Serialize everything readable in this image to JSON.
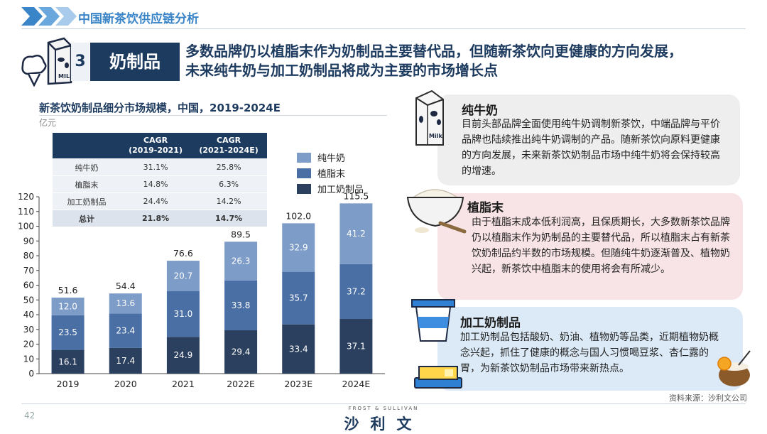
{
  "header": {
    "title": "中国新茶饮供应链分析"
  },
  "section": {
    "number": "3",
    "label": "奶制品",
    "headline_line1": "多数品牌仍以植脂末作为奶制品主要替代品，但随新茶饮向更健康的方向发展，",
    "headline_line2": "未来纯牛奶与加工奶制品将成为主要的市场增长点"
  },
  "chart": {
    "title": "新茶饮奶制品细分市场规模，中国，2019-2024E",
    "unit": "亿元"
  },
  "cagr_table": {
    "headers": [
      "",
      "CAGR\n(2019-2021)",
      "CAGR\n(2021-2024E)"
    ],
    "rows": [
      [
        "纯牛奶",
        "31.1%",
        "25.8%"
      ],
      [
        "植脂末",
        "14.8%",
        "6.3%"
      ],
      [
        "加工奶制品",
        "24.4%",
        "14.2%"
      ],
      [
        "总计",
        "21.8%",
        "14.7%"
      ]
    ]
  },
  "chart_data": {
    "type": "bar",
    "stacked": true,
    "categories": [
      "2019",
      "2020",
      "2021",
      "2022E",
      "2023E",
      "2024E"
    ],
    "series": [
      {
        "name": "加工奶制品",
        "values": [
          16.1,
          17.4,
          24.9,
          29.4,
          33.4,
          37.1
        ],
        "color": "#2b3f5e"
      },
      {
        "name": "植脂末",
        "values": [
          23.5,
          23.4,
          31.0,
          33.8,
          35.7,
          37.2
        ],
        "color": "#4a6fa5"
      },
      {
        "name": "纯牛奶",
        "values": [
          12.0,
          13.6,
          20.7,
          26.3,
          32.9,
          41.2
        ],
        "color": "#7d9cc8"
      }
    ],
    "totals": [
      "51.6",
      "54.4",
      "76.6",
      "89.5",
      "102.0",
      "115.5"
    ],
    "ylim": [
      0,
      120
    ],
    "yticks": [
      0,
      10,
      20,
      30,
      40,
      50,
      60,
      70,
      80,
      90,
      100,
      110,
      120
    ],
    "legend": [
      "纯牛奶",
      "植脂末",
      "加工奶制品"
    ],
    "legend_placement": "top-right",
    "grid": false
  },
  "cards": [
    {
      "title": "纯牛奶",
      "text": "目前头部品牌全面使用纯牛奶调制新茶饮，中端品牌与平价品牌也陆续推出纯牛奶调制的产品。随新茶饮向原料更健康的方向发展，未来新茶饮奶制品市场中纯牛奶将会保持较高的增速。",
      "icon": "milk-carton-icon"
    },
    {
      "title": "植脂末",
      "text": "由于植脂末成本低利润高，且保质期长，大多数新茶饮品牌仍以植脂末作为奶制品的主要替代品，所以植脂末占有新茶饮奶制品约半数的市场规模。但随纯牛奶逐渐普及、植物奶兴起，新茶饮中植脂末的使用将会有所减少。",
      "icon": "powder-bowl-icon"
    },
    {
      "title": "加工奶制品",
      "text": "加工奶制品包括酸奶、奶油、植物奶等品类，近期植物奶概念兴起，抓住了健康的概念与国人习惯喝豆浆、杏仁露的胃，为新茶饮奶制品市场带来新热点。",
      "icon": "yogurt-cup-icon"
    }
  ],
  "source": "资料来源：沙利文公司",
  "footer": {
    "page_number": "42",
    "logo_small": "FROST & SULLIVAN",
    "logo_main": "沙利文"
  },
  "colors": {
    "navy": "#1d3a5f",
    "accent_blue": "#3a84c8"
  }
}
